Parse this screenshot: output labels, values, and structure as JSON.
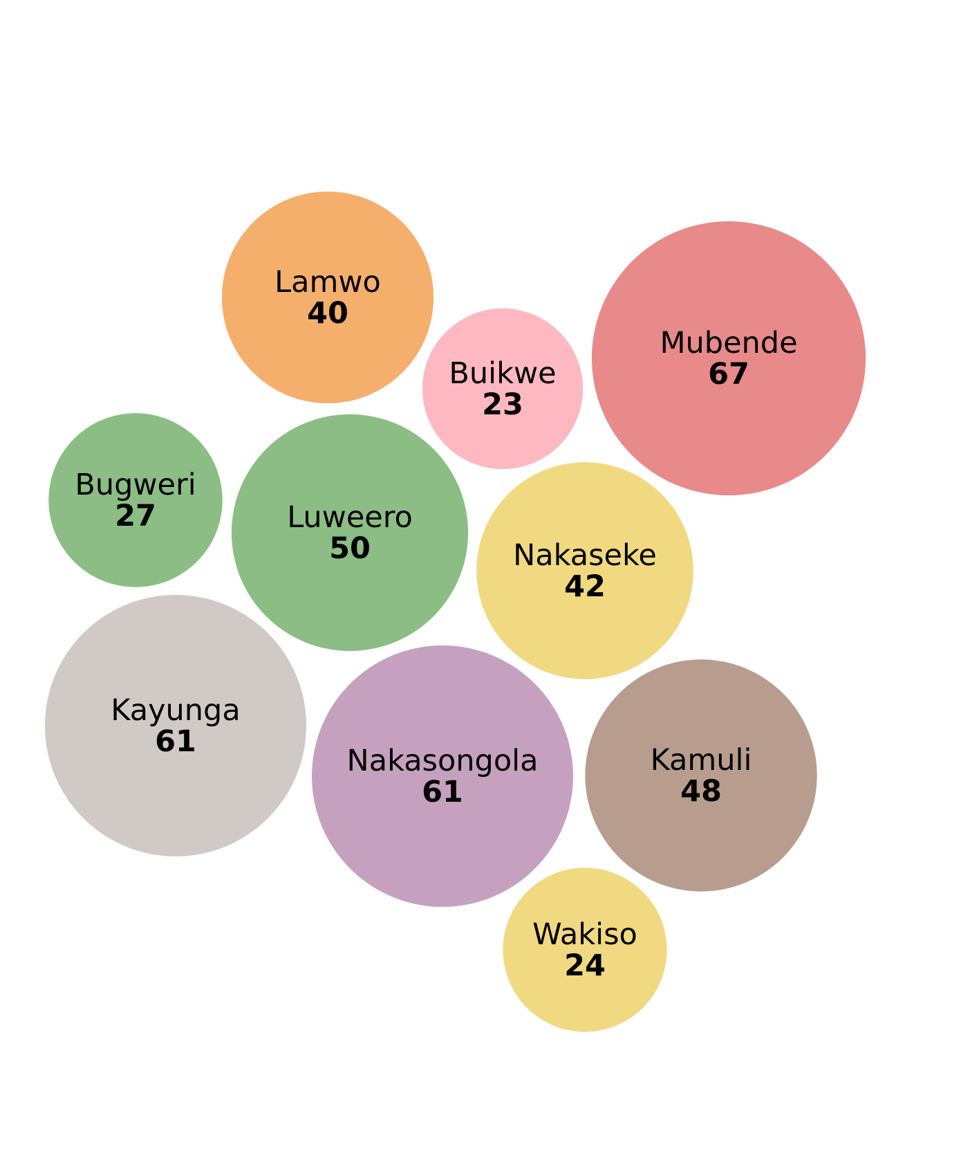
{
  "chart_data": {
    "type": "bubble",
    "title": "",
    "items": [
      {
        "label": "Lamwo",
        "value": 40,
        "color": "#F4AF6D"
      },
      {
        "label": "Buikwe",
        "value": 23,
        "color": "#FDB8C1"
      },
      {
        "label": "Mubende",
        "value": 67,
        "color": "#E8898A"
      },
      {
        "label": "Bugweri",
        "value": 27,
        "color": "#8BBD85"
      },
      {
        "label": "Luweero",
        "value": 50,
        "color": "#8BBD85"
      },
      {
        "label": "Nakaseke",
        "value": 42,
        "color": "#F1D981"
      },
      {
        "label": "Kayunga",
        "value": 61,
        "color": "#D0C9C6"
      },
      {
        "label": "Nakasongola",
        "value": 61,
        "color": "#C6A1BF"
      },
      {
        "label": "Kamuli",
        "value": 48,
        "color": "#B89D8E"
      },
      {
        "label": "Wakiso",
        "value": 24,
        "color": "#F1D981"
      }
    ]
  }
}
